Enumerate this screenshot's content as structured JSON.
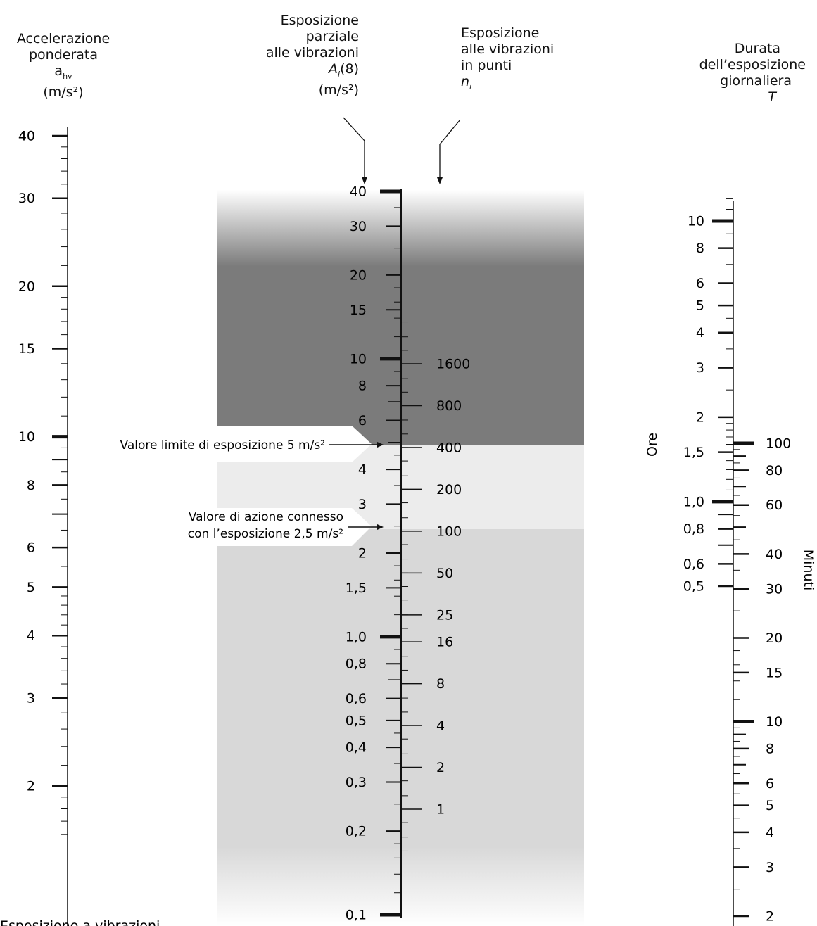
{
  "headers": {
    "col1": {
      "lines": [
        "Accelerazione",
        "ponderata"
      ],
      "symbol": "a",
      "symbol_sub": "hv",
      "unit": "(m/s²)"
    },
    "col2": {
      "lines": [
        "Esposizione",
        "parziale",
        "alle vibrazioni"
      ],
      "symbol": "A",
      "symbol_sub": "i",
      "symbol_suffix": "(8)",
      "unit": "(m/s²)"
    },
    "col3": {
      "lines": [
        "Esposizione",
        "alle vibrazioni",
        "in punti"
      ],
      "symbol": "n",
      "symbol_sub": "i"
    },
    "col4": {
      "lines": [
        "Durata",
        "dell’esposizione",
        "giornaliera"
      ],
      "symbol": "T"
    }
  },
  "annotations": {
    "limit": "Valore limite di esposizione 5 m/s²",
    "action_line1": "Valore di azione connesso",
    "action_line2": "con l’esposizione 2,5 m/s²"
  },
  "side_labels": {
    "hours": "Ore",
    "minutes": "Minuti"
  },
  "footer": "Esposizione a vibrazioni",
  "zones": {
    "above_limit": "#7b7b7b",
    "between": "#ececec",
    "below_action": "#d8d8d8"
  },
  "scales": {
    "ahv": {
      "labels": [
        "40",
        "30",
        "20",
        "15",
        "10",
        "8",
        "6",
        "5",
        "4",
        "3",
        "2"
      ]
    },
    "ai8": {
      "labels": [
        "40",
        "30",
        "20",
        "15",
        "10",
        "8",
        "6",
        "4",
        "3",
        "2",
        "1,5",
        "1,0",
        "0,8",
        "0,6",
        "0,5",
        "0,4",
        "0,3",
        "0,2",
        "0,1"
      ]
    },
    "points": {
      "labels": [
        "1600",
        "800",
        "400",
        "200",
        "100",
        "50",
        "25",
        "16",
        "8",
        "4",
        "2",
        "1"
      ]
    },
    "hours": {
      "labels": [
        "10",
        "8",
        "6",
        "5",
        "4",
        "3",
        "2",
        "1,5",
        "1,0",
        "0,8",
        "0,6",
        "0,5"
      ]
    },
    "minutes": {
      "labels": [
        "100",
        "80",
        "60",
        "40",
        "30",
        "20",
        "15",
        "10",
        "8",
        "6",
        "5",
        "4",
        "3",
        "2"
      ]
    }
  }
}
